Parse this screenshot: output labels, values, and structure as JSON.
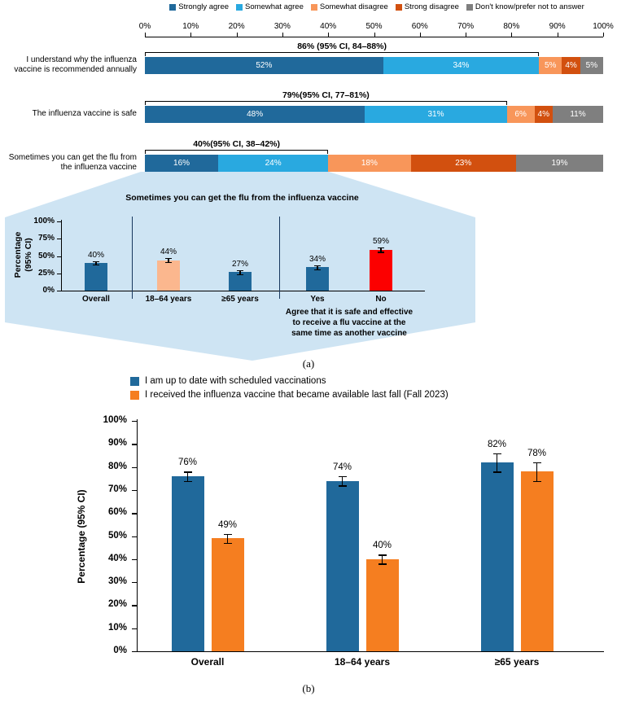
{
  "figure": {
    "panel_a_label": "(a)",
    "panel_b_label": "(b)"
  },
  "chart_data": [
    {
      "type": "bar",
      "subtype": "horizontal_stacked_100pct",
      "panel": "a",
      "legend": [
        {
          "label": "Strongly agree",
          "color": "#20699B"
        },
        {
          "label": "Somewhat agree",
          "color": "#29A9E0"
        },
        {
          "label": "Somewhat disagree",
          "color": "#F8965A"
        },
        {
          "label": "Strong disagree",
          "color": "#D2500F"
        },
        {
          "label": "Don't know/prefer not to answer",
          "color": "#7F7F7F"
        }
      ],
      "x_axis_ticks": [
        "0%",
        "10%",
        "20%",
        "30%",
        "40%",
        "50%",
        "60%",
        "70%",
        "80%",
        "90%",
        "100%"
      ],
      "xlim": [
        0,
        100
      ],
      "rows": [
        {
          "category": "I understand why the influenza vaccine is recommended annually",
          "values": [
            52,
            34,
            5,
            4,
            5
          ],
          "annotation": {
            "text": "86% (95% CI, 84–88%)",
            "span": 86
          }
        },
        {
          "category": "The influenza vaccine is safe",
          "values": [
            48,
            31,
            6,
            4,
            11
          ],
          "annotation": {
            "text": "79%(95% CI, 77–81%)",
            "span": 79
          }
        },
        {
          "category": "Sometimes you can get the flu from the influenza vaccine",
          "values": [
            16,
            24,
            18,
            23,
            19
          ],
          "annotation": {
            "text": "40%(95% CI, 38–42%)",
            "span": 40
          }
        }
      ]
    },
    {
      "type": "bar",
      "subtype": "vertical_inset_zoom",
      "panel": "a-inset",
      "title": "Sometimes you can get the flu from the influenza vaccine",
      "ylabel_lines": [
        "Percentage",
        "(95% CI)"
      ],
      "yticks": [
        0,
        25,
        50,
        75,
        100
      ],
      "ylim": [
        0,
        100
      ],
      "inset_bg": "#CEE4F3",
      "separator_color": "#17375E",
      "bars": [
        {
          "label": "Overall",
          "value": 40,
          "err": 2,
          "color": "#20699B"
        },
        {
          "label": "18–64 years",
          "value": 44,
          "err": 3,
          "color": "#FBB78E"
        },
        {
          "label": "≥65 years",
          "value": 27,
          "err": 3,
          "color": "#20699B"
        },
        {
          "label": "Yes",
          "value": 34,
          "err": 3,
          "color": "#20699B"
        },
        {
          "label": "No",
          "value": 59,
          "err": 3,
          "color": "#FC0000"
        }
      ],
      "group_note_lines": [
        "Agree that it is safe and effective",
        "to receive a flu vaccine at the",
        "same time as another vaccine"
      ]
    },
    {
      "type": "bar",
      "subtype": "grouped_vertical",
      "panel": "b",
      "ylabel": "Percentage (95% CI)",
      "yticks": [
        0,
        10,
        20,
        30,
        40,
        50,
        60,
        70,
        80,
        90,
        100
      ],
      "ylim": [
        0,
        100
      ],
      "categories": [
        "Overall",
        "18–64 years",
        "≥65 years"
      ],
      "series": [
        {
          "name": "I am up to date with scheduled vaccinations",
          "color": "#20699B",
          "values": [
            76,
            74,
            82
          ],
          "errors": [
            2,
            2,
            4
          ]
        },
        {
          "name": "I received the influenza vaccine that became available last fall (Fall 2023)",
          "color": "#F57E20",
          "values": [
            49,
            40,
            78
          ],
          "errors": [
            2,
            2,
            4
          ]
        }
      ]
    }
  ]
}
